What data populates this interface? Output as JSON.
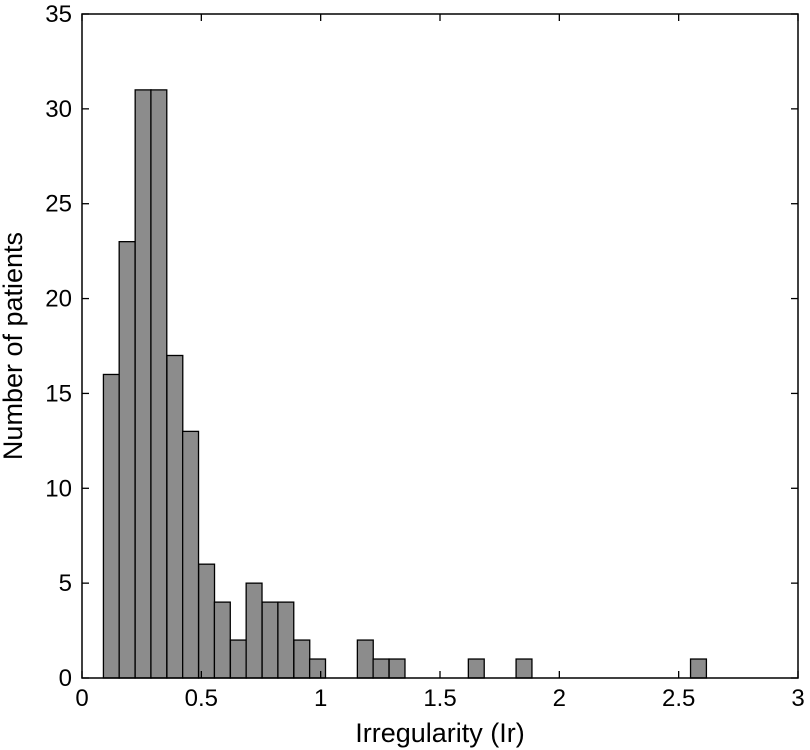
{
  "chart_data": {
    "type": "bar",
    "subtype": "histogram",
    "title": "",
    "xlabel": "Irregularity (Ir)",
    "ylabel": "Number of patients",
    "xlim": [
      0,
      3
    ],
    "ylim": [
      0,
      35
    ],
    "xticks": [
      0,
      0.5,
      1,
      1.5,
      2,
      2.5,
      3
    ],
    "xtick_labels": [
      "0",
      "0.5",
      "1",
      "1.5",
      "2",
      "2.5",
      "3"
    ],
    "yticks": [
      0,
      5,
      10,
      15,
      20,
      25,
      30,
      35
    ],
    "ytick_labels": [
      "0",
      "5",
      "10",
      "15",
      "20",
      "25",
      "30",
      "35"
    ],
    "grid": false,
    "bar_color": "#8c8c8c",
    "bar_edge_color": "#000000",
    "bin_width": 0.0665,
    "bin_centers": [
      0.123,
      0.189,
      0.256,
      0.322,
      0.389,
      0.455,
      0.522,
      0.588,
      0.655,
      0.721,
      0.788,
      0.854,
      0.921,
      0.987,
      1.187,
      1.253,
      1.32,
      1.652,
      1.852,
      2.583
    ],
    "values": [
      16,
      23,
      31,
      31,
      17,
      13,
      6,
      4,
      2,
      5,
      4,
      4,
      2,
      1,
      2,
      1,
      1,
      1,
      1,
      1
    ]
  }
}
